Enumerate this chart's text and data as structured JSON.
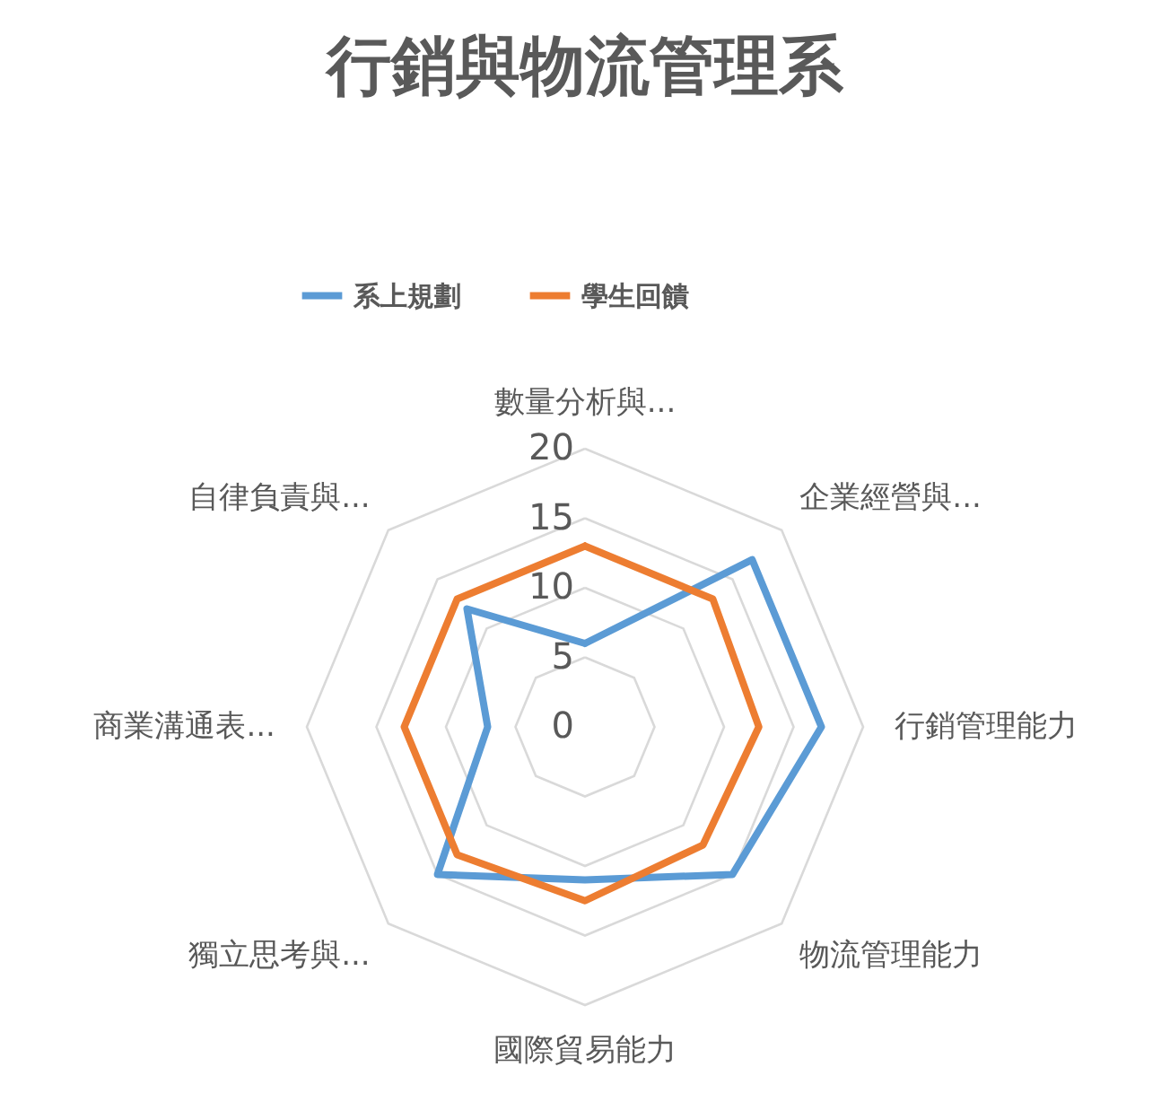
{
  "chart_data": {
    "type": "radar",
    "title": "行銷與物流管理系",
    "categories": [
      "數量分析與...",
      "企業經營與...",
      "行銷管理能力",
      "物流管理能力",
      "國際貿易能力",
      "獨立思考與...",
      "商業溝通表...",
      "自律負責與..."
    ],
    "series": [
      {
        "name": "系上規劃",
        "color": "#5b9bd5",
        "values": [
          6,
          17,
          17,
          15,
          11,
          15,
          7,
          12
        ]
      },
      {
        "name": "學生回饋",
        "color": "#ed7d31",
        "values": [
          13,
          13,
          12.5,
          12,
          12.5,
          13,
          13,
          13
        ]
      }
    ],
    "ylim": [
      0,
      20
    ],
    "yticks": [
      0,
      5,
      10,
      15,
      20
    ],
    "grid": true,
    "legend": "top"
  }
}
